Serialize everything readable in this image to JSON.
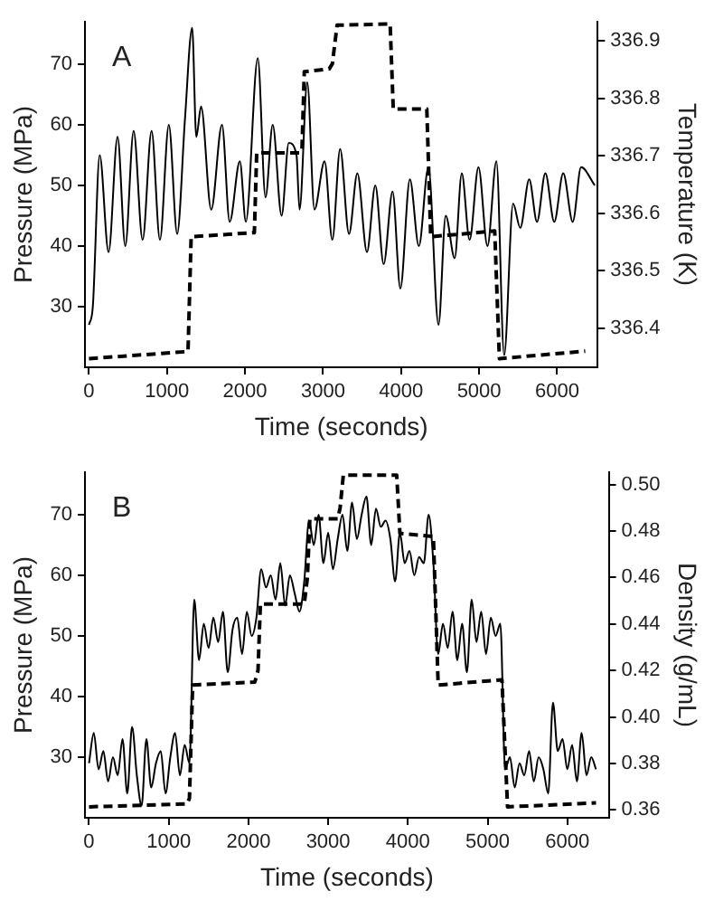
{
  "chart_data": [
    {
      "type": "line",
      "title": "A",
      "xlabel": "Time (seconds)",
      "ylabel": "Pressure (MPa)",
      "y2label": "Temperature (K)",
      "xlim": [
        -50,
        6520
      ],
      "xticks": [
        0,
        1000,
        2000,
        3000,
        4000,
        5000,
        6000
      ],
      "ylim": [
        20,
        77
      ],
      "yticks": [
        30,
        40,
        50,
        60,
        70
      ],
      "y2lim": [
        336.332,
        336.933
      ],
      "y2ticks": [
        336.4,
        336.5,
        336.6,
        336.7,
        336.8,
        336.9
      ],
      "grid": false,
      "legend": false,
      "marker": "none",
      "series": [
        {
          "color": "#000000",
          "line_style": "solid",
          "x": [
            0,
            50,
            138,
            252,
            367,
            466,
            573,
            688,
            803,
            910,
            1024,
            1131,
            1231,
            1323,
            1376,
            1437,
            1567,
            1705,
            1804,
            1934,
            2011,
            2164,
            2263,
            2355,
            2469,
            2561,
            2660,
            2699,
            2798,
            2890,
            3020,
            3119,
            3219,
            3333,
            3440,
            3563,
            3670,
            3777,
            3891,
            3991,
            4113,
            4228,
            4350,
            4480,
            4572,
            4687,
            4778,
            4878,
            4992,
            5107,
            5222,
            5321,
            5436,
            5527,
            5642,
            5742,
            5849,
            5963,
            6078,
            6200,
            6307,
            6483
          ],
          "values": [
            27,
            30,
            55,
            39,
            58,
            40,
            59,
            41,
            59,
            41,
            60,
            42,
            61,
            76,
            58,
            63,
            46,
            60,
            44,
            54,
            44,
            71,
            48,
            60,
            45,
            57,
            55,
            46,
            67,
            46,
            54,
            41,
            56,
            42,
            52,
            39,
            50,
            37,
            49,
            33,
            51,
            40,
            53,
            27,
            45,
            38,
            52,
            41,
            53,
            40,
            54,
            22,
            47,
            43,
            51,
            44,
            52,
            44,
            52,
            44,
            53,
            50
          ]
        },
        {
          "color": "#000000",
          "line_style": "dashed",
          "axis": "y2",
          "x": [
            0,
            1230,
            1270,
            1310,
            2100,
            2120,
            2150,
            2700,
            2730,
            2760,
            3080,
            3120,
            3180,
            3860,
            3900,
            4330,
            4380,
            5200,
            5260,
            6360
          ],
          "values": [
            336.347,
            336.359,
            336.36,
            336.559,
            336.566,
            336.566,
            336.705,
            336.705,
            336.71,
            336.846,
            336.851,
            336.86,
            336.927,
            336.929,
            336.781,
            336.781,
            336.559,
            336.569,
            336.347,
            336.36
          ]
        }
      ]
    },
    {
      "type": "line",
      "title": "B",
      "xlabel": "Time (seconds)",
      "ylabel": "Pressure (MPa)",
      "y2label": "Density (g/mL)",
      "xlim": [
        -50,
        6520
      ],
      "xticks": [
        0,
        1000,
        2000,
        3000,
        4000,
        5000,
        6000
      ],
      "ylim": [
        20,
        77
      ],
      "yticks": [
        30,
        40,
        50,
        60,
        70
      ],
      "y2lim": [
        0.3566,
        0.5053
      ],
      "y2ticks": [
        {
          "value": 0.36,
          "label": "0.36"
        },
        {
          "value": 0.38,
          "label": "0.38"
        },
        {
          "value": 0.4,
          "label": "0.40"
        },
        {
          "value": 0.42,
          "label": "0.42"
        },
        {
          "value": 0.44,
          "label": "0.44"
        },
        {
          "value": 0.46,
          "label": "0.46"
        },
        {
          "value": 0.48,
          "label": "0.48"
        },
        {
          "value": 0.5,
          "label": "0.50"
        }
      ],
      "grid": false,
      "legend": false,
      "marker": "none",
      "series": [
        {
          "color": "#000000",
          "line_style": "solid",
          "x": [
            0,
            60,
            120,
            180,
            240,
            300,
            360,
            420,
            480,
            540,
            600,
            660,
            720,
            780,
            840,
            900,
            960,
            1020,
            1080,
            1140,
            1200,
            1260,
            1320,
            1380,
            1440,
            1500,
            1560,
            1620,
            1680,
            1740,
            1800,
            1860,
            1920,
            1980,
            2040,
            2100,
            2160,
            2220,
            2280,
            2340,
            2400,
            2460,
            2520,
            2580,
            2640,
            2700,
            2760,
            2820,
            2880,
            2940,
            3000,
            3060,
            3120,
            3180,
            3240,
            3300,
            3360,
            3420,
            3480,
            3540,
            3600,
            3660,
            3720,
            3780,
            3840,
            3900,
            3960,
            4020,
            4080,
            4140,
            4200,
            4260,
            4320,
            4380,
            4440,
            4500,
            4560,
            4620,
            4680,
            4740,
            4800,
            4860,
            4920,
            4980,
            5040,
            5100,
            5160,
            5220,
            5280,
            5340,
            5400,
            5460,
            5520,
            5580,
            5640,
            5700,
            5760,
            5820,
            5880,
            5940,
            6000,
            6060,
            6120,
            6180,
            6240,
            6300,
            6360
          ],
          "values": [
            29,
            34,
            28,
            31,
            26,
            30,
            27,
            33,
            24,
            35,
            27,
            22,
            33,
            25,
            29,
            31,
            24,
            30,
            34,
            27,
            32,
            29,
            56,
            46,
            52,
            48,
            53,
            49,
            54,
            44,
            51,
            53,
            47,
            54,
            50,
            53,
            61,
            58,
            60,
            56,
            62,
            55,
            60,
            57,
            54,
            59,
            69,
            65,
            70,
            62,
            67,
            61,
            66,
            70,
            64,
            72,
            66,
            70,
            73,
            65,
            71,
            68,
            69,
            66,
            59,
            67,
            62,
            64,
            60,
            63,
            62,
            70,
            62,
            47,
            52,
            48,
            54,
            46,
            52,
            44,
            56,
            49,
            54,
            47,
            53,
            50,
            52,
            28,
            30,
            25,
            29,
            27,
            31,
            26,
            30,
            28,
            24,
            39,
            31,
            33,
            28,
            32,
            26,
            34,
            27,
            30,
            28
          ]
        },
        {
          "color": "#000000",
          "line_style": "dashed",
          "axis": "y2",
          "x": [
            0,
            1230,
            1260,
            1300,
            2080,
            2120,
            2150,
            2700,
            2740,
            2770,
            3120,
            3150,
            3190,
            3860,
            3900,
            4320,
            4380,
            5180,
            5250,
            6360
          ],
          "values": [
            0.3613,
            0.3626,
            0.365,
            0.4137,
            0.415,
            0.42,
            0.4486,
            0.4486,
            0.46,
            0.4853,
            0.4853,
            0.49,
            0.504,
            0.504,
            0.479,
            0.4776,
            0.4137,
            0.416,
            0.3613,
            0.363
          ]
        }
      ]
    }
  ]
}
